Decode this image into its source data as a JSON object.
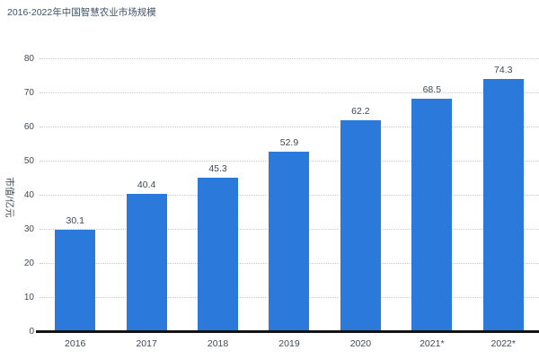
{
  "title": "2016-2022年中国智慧农业市场规模",
  "y_axis_title": "市值/亿元",
  "colors": {
    "bar": "#2b79da",
    "title": "#3d5066",
    "tick": "#3f4956",
    "grid": "#c9c9c9",
    "baseline": "#141414"
  },
  "chart_data": {
    "type": "bar",
    "title": "2016-2022年中国智慧农业市场规模",
    "categories": [
      "2016",
      "2017",
      "2018",
      "2019",
      "2020",
      "2021*",
      "2022*"
    ],
    "values": [
      30.1,
      40.4,
      45.3,
      52.9,
      62.2,
      68.5,
      74.3
    ],
    "xlabel": "",
    "ylabel": "市值/亿元",
    "ylim": [
      0,
      80
    ],
    "ytick_step": 10,
    "yticks": [
      0,
      10,
      20,
      30,
      40,
      50,
      60,
      70,
      80
    ],
    "grid": "horizontal-dotted",
    "legend": "none",
    "bar_labels_shown": true
  }
}
